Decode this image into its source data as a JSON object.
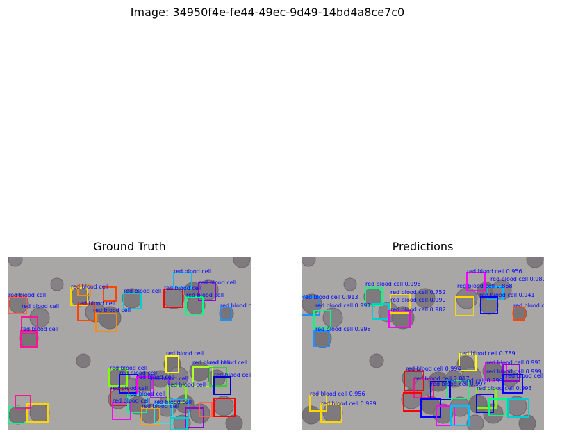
{
  "figure": {
    "title": "Image: 34950f4e-fe44-49ec-9d49-14bd4a8ce7c0"
  },
  "panels": [
    {
      "id": "gt",
      "title": "Ground Truth",
      "annotations": [
        {
          "label": "red blood cell",
          "color": "#00bfff"
        },
        {
          "label": "red blood cell",
          "color": "#9400d3"
        },
        {
          "label": "red blood cell",
          "color": "#ff0000"
        },
        {
          "label": "red blood cell",
          "color": "#00ff7f"
        },
        {
          "label": "red blood cell",
          "color": "#ffd700"
        },
        {
          "label": "red blood cell",
          "color": "#00ced1"
        },
        {
          "label": "red blood cell",
          "color": "#ff1493"
        },
        {
          "label": "red blood cell",
          "color": "#ff4500"
        },
        {
          "label": "red blood cell",
          "color": "#ff8c00"
        },
        {
          "label": "red blood cell",
          "color": "#ff6347"
        },
        {
          "label": "red blood cell",
          "color": "#ff1493"
        },
        {
          "label": "red blood cell",
          "color": "#1e90ff"
        },
        {
          "label": "red blood cell",
          "color": "#ffff00"
        },
        {
          "label": "red blood cell",
          "color": "#7fff00"
        },
        {
          "label": "red blood cell",
          "color": "#0000ff"
        },
        {
          "label": "red blood cell",
          "color": "#ff00ff"
        },
        {
          "label": "red blood cell",
          "color": "#8a2be2"
        },
        {
          "label": "red blood cell",
          "color": "#7cfc00"
        },
        {
          "label": "red blood cell",
          "color": "#adff2f"
        },
        {
          "label": "red blood cell",
          "color": "#32cd32"
        },
        {
          "label": "red blood cell",
          "color": "#0000cd"
        },
        {
          "label": "red blood cell",
          "color": "#dc143c"
        },
        {
          "label": "red blood cell",
          "color": "#00fa9a"
        },
        {
          "label": "red blood cell",
          "color": "#ff00ff"
        },
        {
          "label": "red blood cell",
          "color": "#ffa500"
        },
        {
          "label": "red blood cell",
          "color": "#40e0d0"
        }
      ]
    },
    {
      "id": "pred",
      "title": "Predictions",
      "annotations": [
        {
          "label": "red blood cell 0.956",
          "color": "#ff00ff"
        },
        {
          "label": "red blood cell 0.989",
          "color": "#00bfff"
        },
        {
          "label": "red blood cell 0.868",
          "color": "#0000ff"
        },
        {
          "label": "red blood cell 0.996",
          "color": "#00ff7f"
        },
        {
          "label": "red blood cell 0.752",
          "color": "#00ced1"
        },
        {
          "label": "red blood cell 0.999",
          "color": "#ffd700"
        },
        {
          "label": "red blood cell 0.941",
          "color": "#ffd700"
        },
        {
          "label": "red blood cell 0.913",
          "color": "#1e90ff"
        },
        {
          "label": "red blood cell 0.997",
          "color": "#00ff7f"
        },
        {
          "label": "red blood cell 0.982",
          "color": "#ff00ff"
        },
        {
          "label": "red blood cell 0.981",
          "color": "#ff4500"
        },
        {
          "label": "red blood cell 0.998",
          "color": "#1e90ff"
        },
        {
          "label": "red blood cell 0.789",
          "color": "#ffff00"
        },
        {
          "label": "red blood cell 0.991",
          "color": "#ff00ff"
        },
        {
          "label": "red blood cell 0.999",
          "color": "#9400d3"
        },
        {
          "label": "red blood cell 1.000",
          "color": "#0000ff"
        },
        {
          "label": "red blood cell 0.994",
          "color": "#ff0000"
        },
        {
          "label": "red blood cell 0.817",
          "color": "#ff1493"
        },
        {
          "label": "red blood cell 0.997",
          "color": "#0000cd"
        },
        {
          "label": "red blood cell 0.999",
          "color": "#00ff7f"
        },
        {
          "label": "red blood cell 0.993",
          "color": "#7cfc00"
        },
        {
          "label": "red blood cell 0.956",
          "color": "#ff0000"
        },
        {
          "label": "red blood cell 0.999",
          "color": "#0000ff"
        }
      ]
    }
  ]
}
